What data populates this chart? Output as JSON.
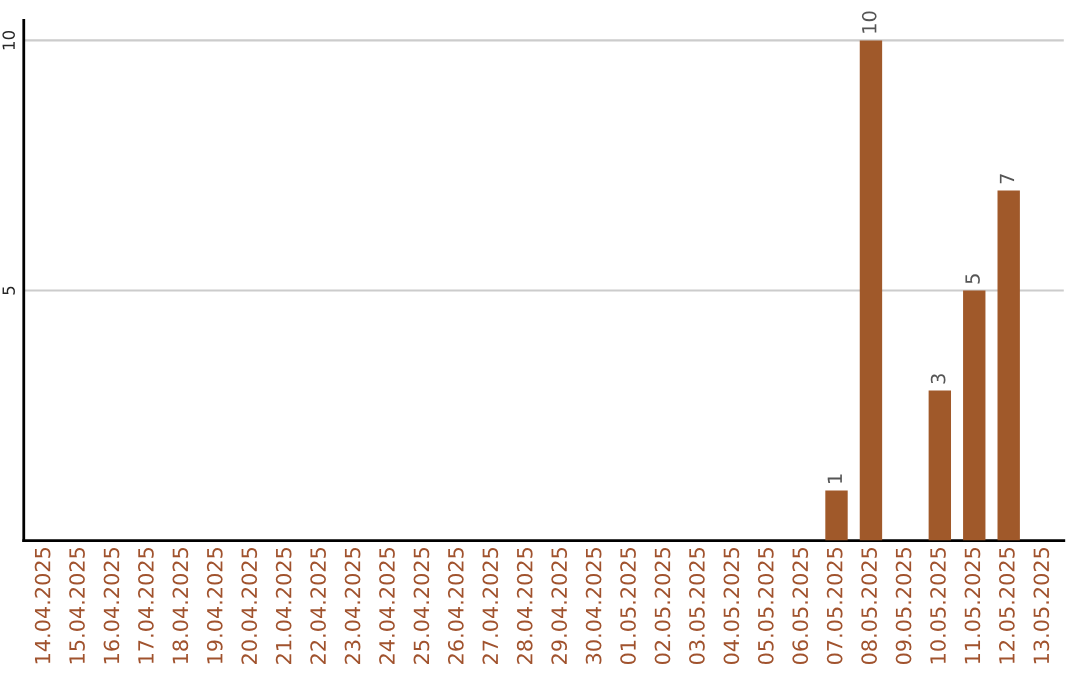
{
  "chart_data": {
    "type": "bar",
    "categories": [
      "14.04.2025",
      "15.04.2025",
      "16.04.2025",
      "17.04.2025",
      "18.04.2025",
      "19.04.2025",
      "20.04.2025",
      "21.04.2025",
      "22.04.2025",
      "23.04.2025",
      "24.04.2025",
      "25.04.2025",
      "26.04.2025",
      "27.04.2025",
      "28.04.2025",
      "29.04.2025",
      "30.04.2025",
      "01.05.2025",
      "02.05.2025",
      "03.05.2025",
      "04.05.2025",
      "05.05.2025",
      "06.05.2025",
      "07.05.2025",
      "08.05.2025",
      "09.05.2025",
      "10.05.2025",
      "11.05.2025",
      "12.05.2025",
      "13.05.2025"
    ],
    "values": [
      null,
      null,
      null,
      null,
      null,
      null,
      null,
      null,
      null,
      null,
      null,
      null,
      null,
      null,
      null,
      null,
      null,
      null,
      null,
      null,
      null,
      null,
      null,
      1,
      10,
      null,
      3,
      5,
      7,
      null
    ],
    "value_labels": [
      null,
      null,
      null,
      null,
      null,
      null,
      null,
      null,
      null,
      null,
      null,
      null,
      null,
      null,
      null,
      null,
      null,
      null,
      null,
      null,
      null,
      null,
      null,
      "1",
      "10",
      null,
      "3",
      "5",
      "7",
      null
    ],
    "color": "#a0592a",
    "ylim": [
      0,
      10.4
    ],
    "yticks": [
      5,
      10
    ],
    "grid": "y"
  }
}
